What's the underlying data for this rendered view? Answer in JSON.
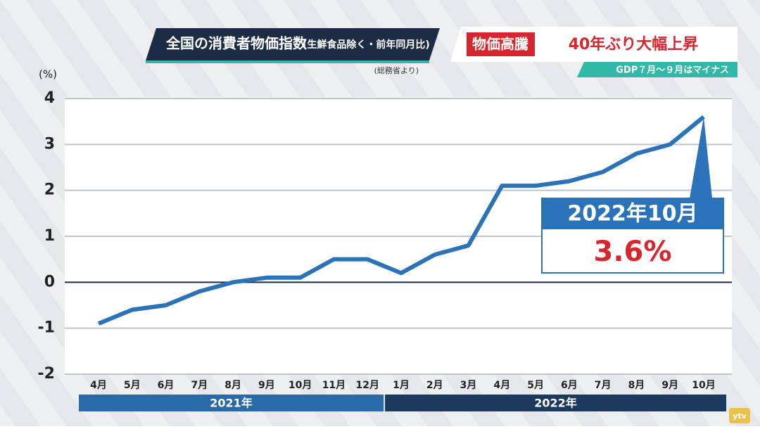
{
  "header": {
    "title": "全国の消費者物価指数",
    "subtitle": "(生鮮食品除く・前年同月比)",
    "source": "(総務省より)",
    "tag": "物価高騰",
    "headline": "40年ぶり大幅上昇",
    "subheadline": "GDP７月～９月はマイナス",
    "logo": "ytv"
  },
  "chart_data": {
    "type": "line",
    "y_label": "(%)",
    "categories": [
      "4月",
      "5月",
      "6月",
      "7月",
      "8月",
      "9月",
      "10月",
      "11月",
      "12月",
      "1月",
      "2月",
      "3月",
      "4月",
      "5月",
      "6月",
      "7月",
      "8月",
      "9月",
      "10月"
    ],
    "groups": [
      {
        "label": "2021年",
        "size": 9
      },
      {
        "label": "2022年",
        "size": 10
      }
    ],
    "series": [
      {
        "name": "消費者物価指数",
        "color": "#2b73b9",
        "values": [
          -0.9,
          -0.6,
          -0.5,
          -0.2,
          0.0,
          0.1,
          0.1,
          0.5,
          0.5,
          0.2,
          0.6,
          0.8,
          2.1,
          2.1,
          2.2,
          2.4,
          2.8,
          3.0,
          3.6
        ],
        "value_labels": [
          null,
          null,
          null,
          null,
          null,
          null,
          null,
          null,
          null,
          null,
          null,
          null,
          null,
          null,
          null,
          null,
          null,
          null,
          "3.6%"
        ]
      }
    ],
    "annotation": "2022年10月",
    "ylim": [
      -2,
      4
    ],
    "yticks": [
      -2,
      -1,
      0,
      1,
      2,
      3,
      4
    ],
    "grid": true
  }
}
